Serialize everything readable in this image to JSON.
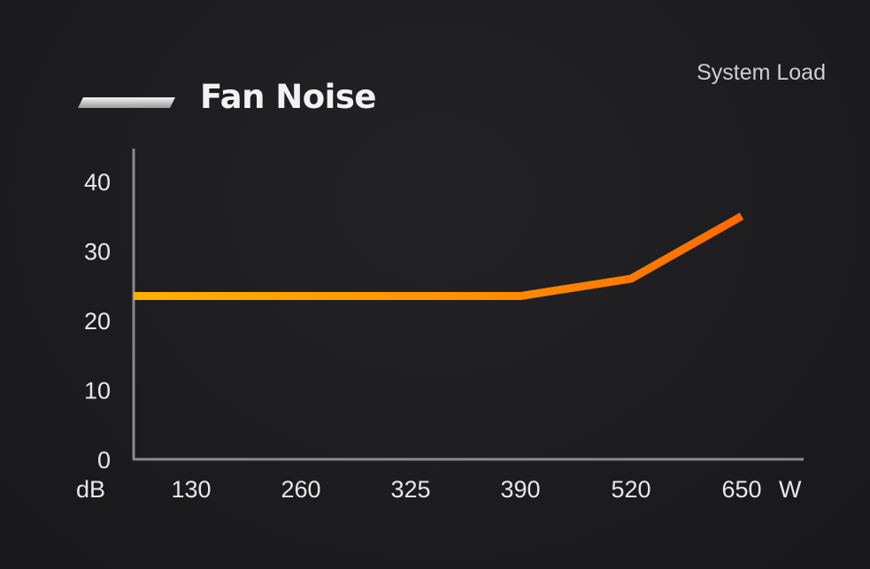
{
  "chart_data": {
    "type": "line",
    "title": "Fan Noise",
    "legend_label": "System Load",
    "xlabel": "W",
    "ylabel": "dB",
    "categories": [
      "130",
      "260",
      "325",
      "390",
      "520",
      "650"
    ],
    "y_ticks": [
      0,
      10,
      20,
      30,
      40
    ],
    "ylim": [
      0,
      40
    ],
    "series": [
      {
        "values": [
          23.5,
          23.5,
          23.5,
          23.5,
          26,
          35
        ]
      }
    ],
    "grid": false,
    "colors": {
      "line_start": "#ffb000",
      "line_end": "#ff6a00",
      "axis": "#8a8a8a",
      "text": "#e8e8e8",
      "title": "#f2f2f2",
      "legend_swatch": "#d9d9d9"
    }
  }
}
